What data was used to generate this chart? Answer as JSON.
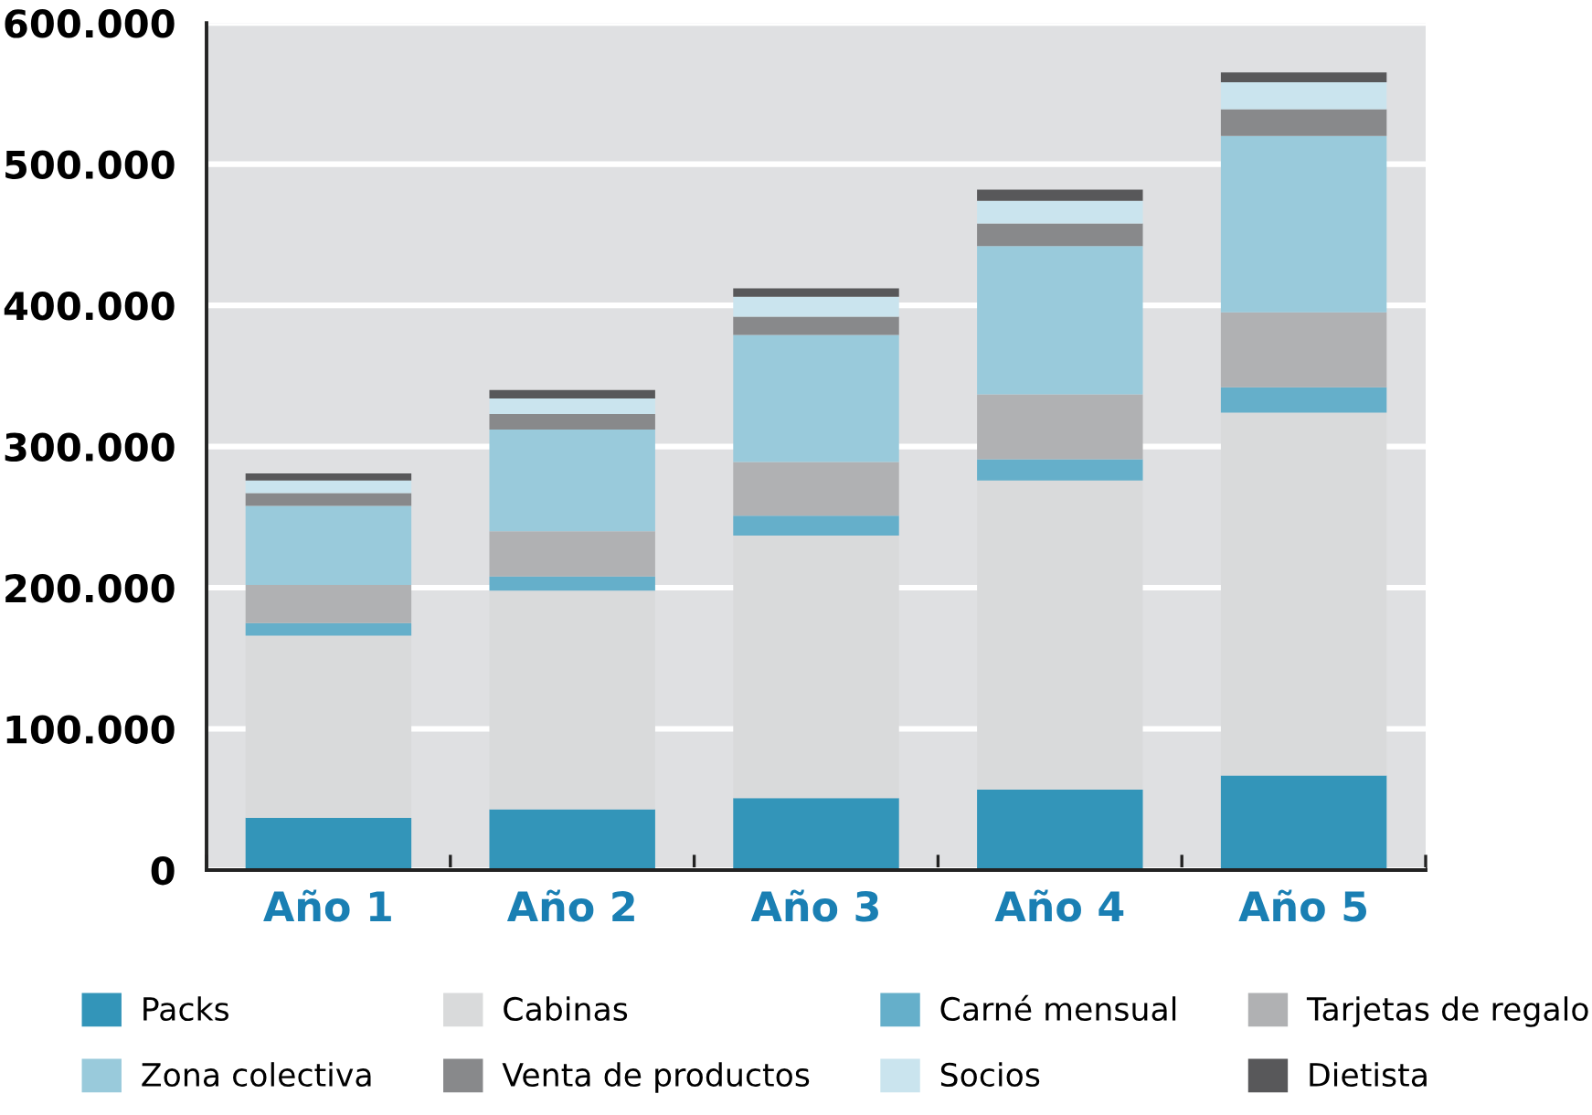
{
  "chart_data": {
    "type": "bar",
    "stacked": true,
    "categories": [
      "Año 1",
      "Año 2",
      "Año 3",
      "Año 4",
      "Año 5"
    ],
    "series": [
      {
        "name": "Packs",
        "color": "#3395b9",
        "values": [
          37000,
          43000,
          51000,
          57000,
          67000
        ]
      },
      {
        "name": "Cabinas",
        "color": "#d9dadb",
        "values": [
          129000,
          155000,
          186000,
          219000,
          257000
        ]
      },
      {
        "name": "Carné mensual",
        "color": "#65afca",
        "values": [
          9000,
          10000,
          14000,
          15000,
          18000
        ]
      },
      {
        "name": "Tarjetas de regalo",
        "color": "#b0b1b3",
        "values": [
          27000,
          32000,
          38000,
          46000,
          53000
        ]
      },
      {
        "name": "Zona colectiva",
        "color": "#99cadb",
        "values": [
          56000,
          72000,
          90000,
          105000,
          125000
        ]
      },
      {
        "name": "Venta de productos",
        "color": "#88898b",
        "values": [
          9000,
          11000,
          13000,
          16000,
          19000
        ]
      },
      {
        "name": "Socios",
        "color": "#cae4ee",
        "values": [
          9000,
          11000,
          14000,
          16000,
          19000
        ]
      },
      {
        "name": "Dietista",
        "color": "#58585a",
        "values": [
          5000,
          6000,
          6000,
          8000,
          7000
        ]
      }
    ],
    "ylim": [
      0,
      600000
    ],
    "yticks": [
      0,
      {
        "value": 100000,
        "label": "100.000"
      },
      {
        "value": 200000,
        "label": "200.000"
      },
      {
        "value": 300000,
        "label": "300.000"
      },
      {
        "value": 400000,
        "label": "400.000"
      },
      {
        "value": 500000,
        "label": "500.000"
      },
      {
        "value": 600000,
        "label": "600.000"
      }
    ],
    "grid": "y",
    "legend": "bottom"
  }
}
